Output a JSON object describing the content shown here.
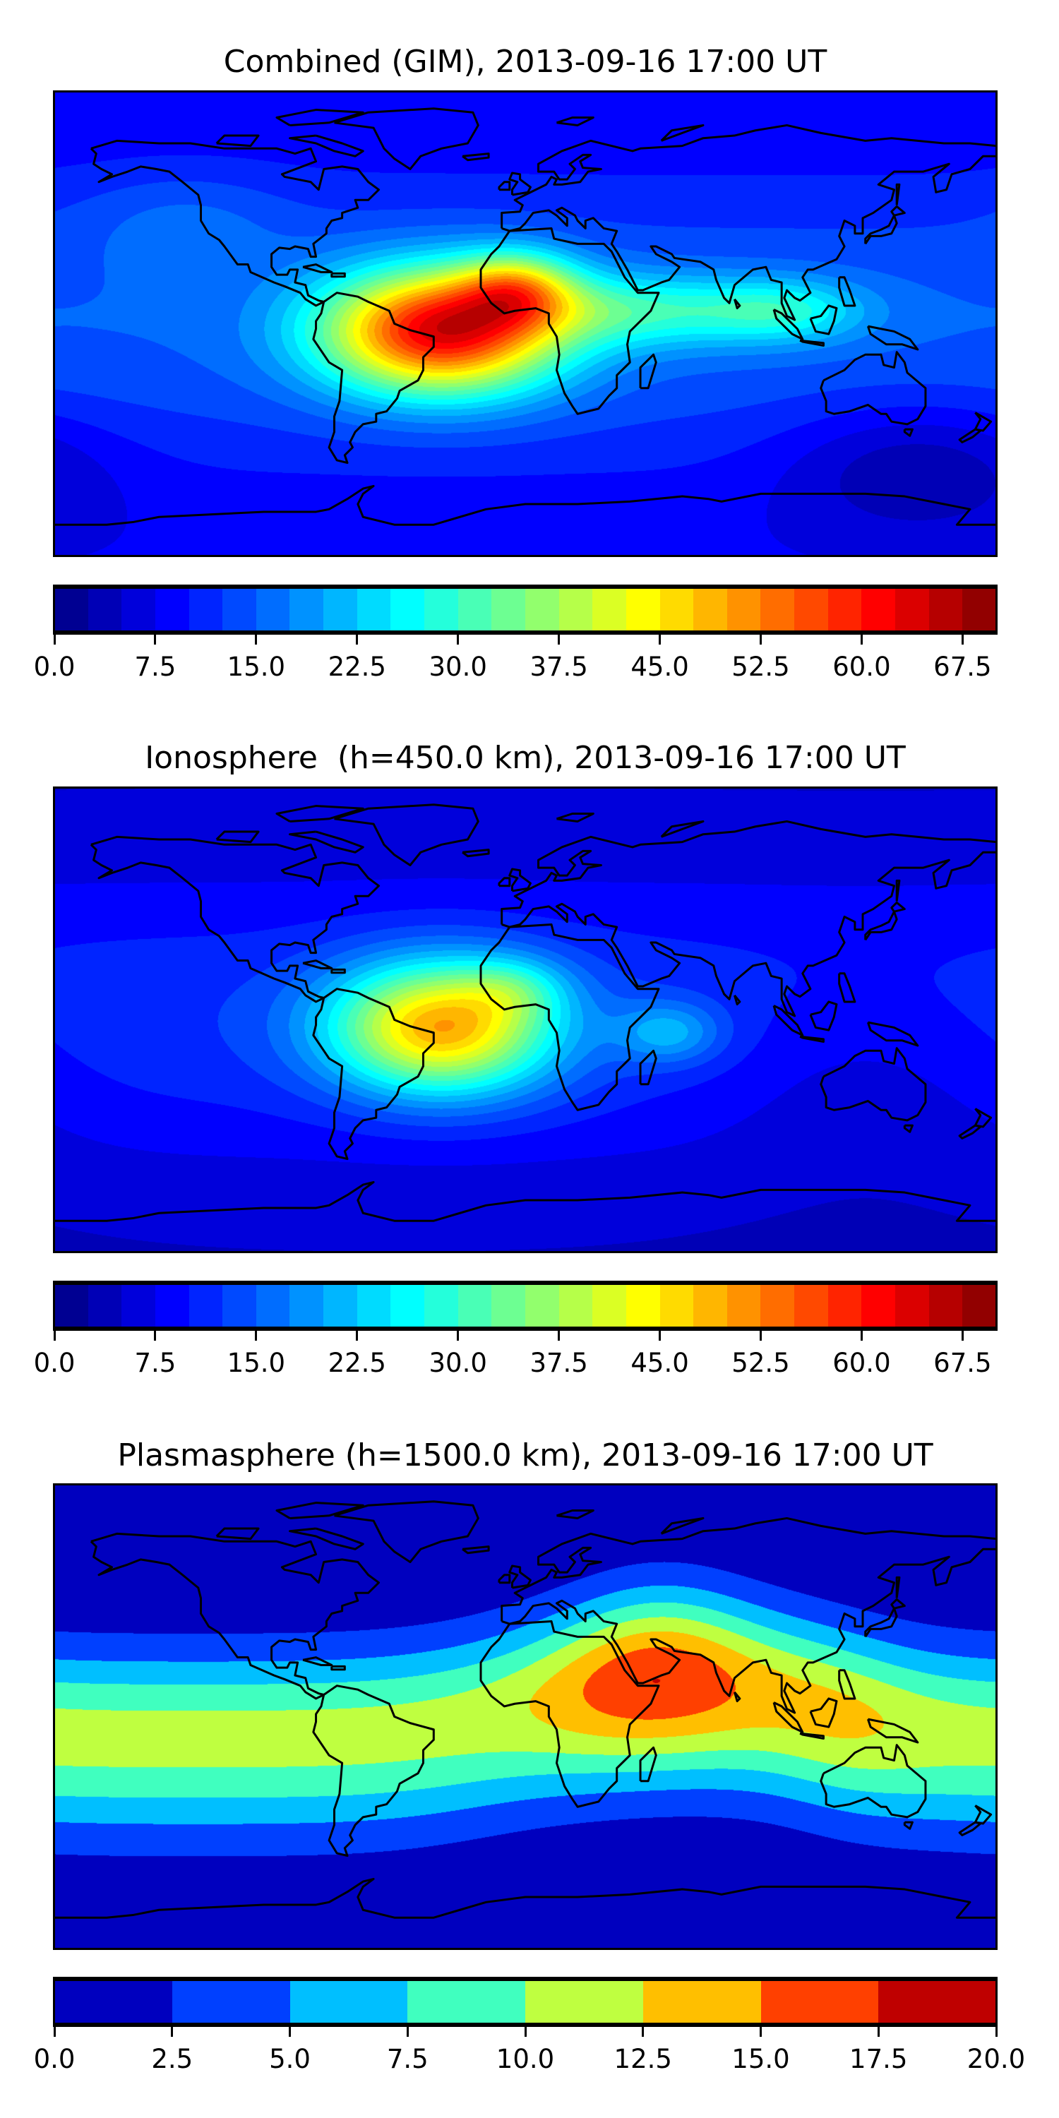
{
  "panels": [
    {
      "title": "Combined (GIM), 2013-09-16 17:00 UT",
      "colorbar": {
        "min": 0,
        "max": 70,
        "levels": 28,
        "ticks": [
          "0.0",
          "7.5",
          "15.0",
          "22.5",
          "30.0",
          "37.5",
          "45.0",
          "52.5",
          "60.0",
          "67.5"
        ]
      }
    },
    {
      "title": "Ionosphere  (h=450.0 km), 2013-09-16 17:00 UT",
      "colorbar": {
        "min": 0,
        "max": 70,
        "levels": 28,
        "ticks": [
          "0.0",
          "7.5",
          "15.0",
          "22.5",
          "30.0",
          "37.5",
          "45.0",
          "52.5",
          "60.0",
          "67.5"
        ]
      }
    },
    {
      "title": "Plasmasphere (h=1500.0 km), 2013-09-16 17:00 UT",
      "colorbar": {
        "min": 0,
        "max": 20,
        "levels": 8,
        "ticks": [
          "0.0",
          "2.5",
          "5.0",
          "7.5",
          "10.0",
          "12.5",
          "15.0",
          "17.5",
          "20.0"
        ]
      }
    }
  ],
  "chart_data": [
    {
      "type": "heatmap",
      "title": "Combined (GIM), 2013-09-16 17:00 UT",
      "projection": "PlateCarree",
      "lon_range": [
        -180,
        180
      ],
      "lat_range": [
        -90,
        90
      ],
      "colormap": "jet",
      "vmin": 0,
      "vmax": 70,
      "level_step": 2.5,
      "features": [
        {
          "name": "main maximum",
          "lon": -32,
          "lat": -3,
          "value": 63
        },
        {
          "name": "secondary maximum",
          "lon": -5,
          "lat": 15,
          "value": 57
        },
        {
          "name": "eastern extension",
          "lon": 80,
          "lat": 5,
          "value": 30
        },
        {
          "name": "southern Pacific minimum",
          "lon": 150,
          "lat": -55,
          "value": 4
        }
      ]
    },
    {
      "type": "heatmap",
      "title": "Ionosphere  (h=450.0 km), 2013-09-16 17:00 UT",
      "projection": "PlateCarree",
      "lon_range": [
        -180,
        180
      ],
      "lat_range": [
        -90,
        90
      ],
      "colormap": "jet",
      "vmin": 0,
      "vmax": 70,
      "level_step": 2.5,
      "features": [
        {
          "name": "main maximum",
          "lon": -30,
          "lat": -3,
          "value": 51
        },
        {
          "name": "eastern bump",
          "lon": 55,
          "lat": -5,
          "value": 22
        },
        {
          "name": "eastern minimum",
          "lon": 130,
          "lat": -20,
          "value": 4
        }
      ]
    },
    {
      "type": "heatmap",
      "title": "Plasmasphere (h=1500.0 km), 2013-09-16 17:00 UT",
      "projection": "PlateCarree",
      "lon_range": [
        -180,
        180
      ],
      "lat_range": [
        -90,
        90
      ],
      "colormap": "jet",
      "vmin": 0,
      "vmax": 20,
      "level_step": 2.5,
      "features": [
        {
          "name": "maximum",
          "lon": 45,
          "lat": 12,
          "value": 16
        },
        {
          "name": "equatorial band Americas",
          "lon": -60,
          "lat": -8,
          "value": 11
        },
        {
          "name": "polar minimum",
          "lon": 0,
          "lat": -80,
          "value": 1
        }
      ]
    }
  ]
}
